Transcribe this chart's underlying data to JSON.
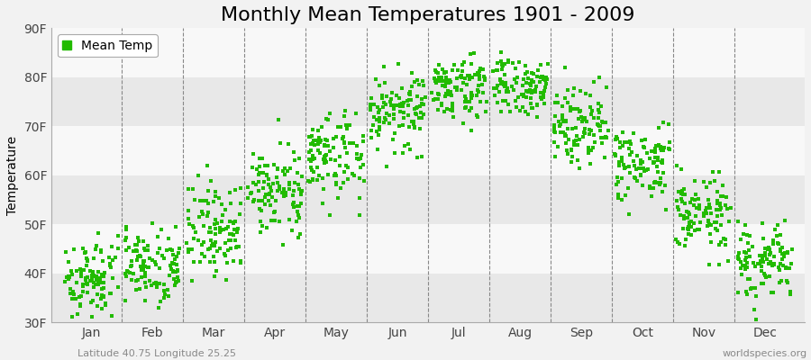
{
  "title": "Monthly Mean Temperatures 1901 - 2009",
  "ylabel": "Temperature",
  "subtitle_left": "Latitude 40.75 Longitude 25.25",
  "subtitle_right": "worldspecies.org",
  "legend_label": "Mean Temp",
  "dot_color": "#22bb00",
  "background_color": "#f2f2f2",
  "band_colors": [
    "#e8e8e8",
    "#f8f8f8"
  ],
  "ylim": [
    30,
    90
  ],
  "yticks": [
    30,
    40,
    50,
    60,
    70,
    80,
    90
  ],
  "ytick_labels": [
    "30F",
    "40F",
    "50F",
    "60F",
    "70F",
    "80F",
    "90F"
  ],
  "months": [
    "Jan",
    "Feb",
    "Mar",
    "Apr",
    "May",
    "Jun",
    "Jul",
    "Aug",
    "Sep",
    "Oct",
    "Nov",
    "Dec"
  ],
  "month_means_F": [
    39,
    42,
    49,
    57,
    64,
    73,
    78,
    78,
    71,
    62,
    52,
    42
  ],
  "month_stds_F": [
    4,
    4,
    5,
    4,
    5,
    4,
    3,
    3,
    4,
    4,
    4,
    4
  ],
  "n_years": 109,
  "title_fontsize": 16,
  "label_fontsize": 10,
  "tick_fontsize": 10,
  "dot_size": 5
}
